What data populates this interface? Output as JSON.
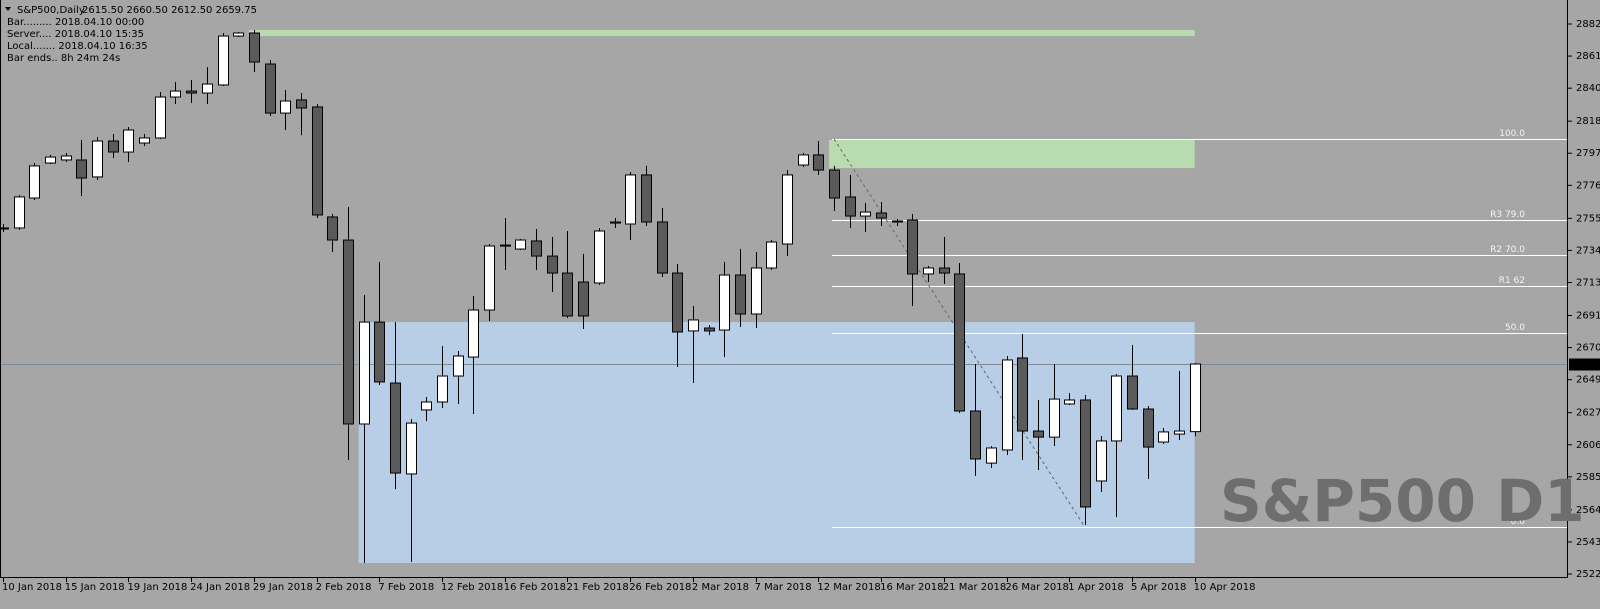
{
  "chart_data": {
    "type": "candlestick",
    "title": "S&P500,Daily",
    "ohlc_text": "2615.50 2660.50 2612.50 2659.75",
    "info": [
      "Bar......... 2018.04.10 00:00",
      "Server.... 2018.04.10 15:35",
      "Local....... 2018.04.10 16:35",
      "Bar ends.. 8h 24m 24s"
    ],
    "watermark": "S&P500 D1",
    "categories": [
      "10 Jan 2018",
      null,
      null,
      null,
      "15 Jan 2018",
      null,
      null,
      null,
      "19 Jan 2018",
      null,
      null,
      null,
      "24 Jan 2018",
      null,
      null,
      null,
      "29 Jan 2018",
      null,
      null,
      null,
      "2 Feb 2018",
      null,
      null,
      null,
      "7 Feb 2018",
      null,
      null,
      null,
      "12 Feb 2018",
      null,
      null,
      null,
      "16 Feb 2018",
      null,
      null,
      null,
      "21 Feb 2018",
      null,
      null,
      null,
      "26 Feb 2018",
      null,
      null,
      null,
      "2 Mar 2018",
      null,
      null,
      null,
      "7 Mar 2018",
      null,
      null,
      null,
      "12 Mar 2018",
      null,
      null,
      null,
      "16 Mar 2018",
      null,
      null,
      null,
      "21 Mar 2018",
      null,
      null,
      null,
      "26 Mar 2018",
      null,
      null,
      null,
      "1 Apr 2018",
      null,
      null,
      null,
      "5 Apr 2018",
      null,
      null,
      null,
      "10 Apr 2018"
    ],
    "open": [
      2748.8,
      2748.8,
      2768.4,
      2791.3,
      2793.3,
      2793.3,
      2782.2,
      2805.7,
      2798.5,
      2804.4,
      2807.7,
      2834.5,
      2838.4,
      2837.1,
      2842.4,
      2874.4,
      2876.4,
      2856.1,
      2824.0,
      2832.6,
      2828.0,
      2756.0,
      2740.9,
      2620.5,
      2687.2,
      2647.3,
      2587.8,
      2629.7,
      2634.9,
      2651.9,
      2664.3,
      2695.1,
      2737.0,
      2735.0,
      2740.3,
      2730.4,
      2719.3,
      2713.4,
      2712.8,
      2752.0,
      2751.4,
      2783.5,
      2752.7,
      2719.3,
      2681.4,
      2683.3,
      2682.0,
      2718.0,
      2692.5,
      2722.6,
      2738.3,
      2790.0,
      2796.6,
      2786.7,
      2769.1,
      2756.6,
      2758.6,
      2753.4,
      2754.0,
      2718.7,
      2722.6,
      2718.7,
      2629.0,
      2594.9,
      2603.5,
      2663.7,
      2615.9,
      2611.9,
      2633.6,
      2636.2,
      2583.2,
      2609.4,
      2651.9,
      2630.3,
      2608.7,
      2613.9,
      2615.5
    ],
    "high": [
      2751.4,
      2770.4,
      2791.3,
      2796.6,
      2797.9,
      2806.4,
      2808.3,
      2810.3,
      2814.9,
      2810.3,
      2837.8,
      2844.3,
      2845.6,
      2854.1,
      2876.4,
      2877.1,
      2878.4,
      2858.7,
      2839.1,
      2837.1,
      2829.9,
      2757.9,
      2762.5,
      2704.9,
      2726.5,
      2687.2,
      2623.8,
      2638.2,
      2671.5,
      2668.3,
      2704.3,
      2738.3,
      2755.3,
      2741.6,
      2748.1,
      2742.9,
      2746.8,
      2731.8,
      2748.8,
      2755.3,
      2785.4,
      2789.4,
      2761.9,
      2725.2,
      2697.7,
      2685.3,
      2726.5,
      2735.0,
      2733.1,
      2740.9,
      2786.7,
      2797.9,
      2805.7,
      2789.4,
      2783.5,
      2765.1,
      2765.8,
      2754.7,
      2757.9,
      2723.9,
      2742.9,
      2725.9,
      2659.8,
      2606.1,
      2665.0,
      2679.4,
      2636.2,
      2659.8,
      2640.8,
      2639.5,
      2612.6,
      2653.2,
      2672.2,
      2632.3,
      2617.9,
      2655.2,
      2660.5
    ],
    "low": [
      2746.2,
      2747.5,
      2767.1,
      2790.7,
      2792.0,
      2769.7,
      2780.2,
      2794.6,
      2792.0,
      2802.4,
      2807.0,
      2829.9,
      2830.6,
      2829.9,
      2841.7,
      2873.8,
      2850.9,
      2822.1,
      2812.9,
      2809.6,
      2755.3,
      2733.1,
      2596.9,
      2529.5,
      2646.0,
      2577.9,
      2530.2,
      2622.4,
      2631.0,
      2633.6,
      2627.0,
      2687.9,
      2721.3,
      2734.4,
      2721.3,
      2706.9,
      2689.9,
      2682.7,
      2711.5,
      2748.8,
      2740.9,
      2750.1,
      2716.7,
      2657.8,
      2647.3,
      2678.7,
      2664.3,
      2684.0,
      2683.3,
      2721.3,
      2730.4,
      2788.7,
      2783.5,
      2759.9,
      2748.8,
      2746.2,
      2750.1,
      2750.1,
      2697.7,
      2713.4,
      2712.1,
      2627.7,
      2586.5,
      2591.7,
      2600.2,
      2596.9,
      2590.4,
      2606.1,
      2632.9,
      2554.4,
      2576.0,
      2559.6,
      2629.7,
      2584.5,
      2607.4,
      2610.0,
      2612.5
    ],
    "close": [
      2748.8,
      2769.1,
      2789.4,
      2795.2,
      2795.9,
      2781.5,
      2805.7,
      2798.5,
      2812.9,
      2807.7,
      2834.5,
      2838.4,
      2837.1,
      2843.0,
      2874.4,
      2876.4,
      2857.4,
      2824.0,
      2831.9,
      2827.3,
      2757.3,
      2740.9,
      2620.5,
      2687.2,
      2648.0,
      2588.4,
      2621.1,
      2634.9,
      2651.9,
      2665.0,
      2695.1,
      2737.0,
      2737.6,
      2740.9,
      2730.4,
      2719.3,
      2691.2,
      2691.2,
      2746.8,
      2752.7,
      2783.5,
      2752.7,
      2719.3,
      2680.7,
      2688.6,
      2681.4,
      2718.0,
      2692.5,
      2722.6,
      2739.6,
      2783.5,
      2796.6,
      2786.7,
      2768.4,
      2756.6,
      2759.2,
      2755.3,
      2752.7,
      2718.7,
      2722.6,
      2719.3,
      2629.0,
      2597.6,
      2604.8,
      2662.4,
      2615.9,
      2611.9,
      2636.8,
      2636.2,
      2566.2,
      2609.4,
      2651.9,
      2630.3,
      2605.4,
      2615.3,
      2615.9,
      2659.75
    ],
    "up_color": "#ffffff",
    "down_color": "#5a5a5a",
    "background": "#a6a6a6",
    "ylim": [
      2519.7,
      2898.0
    ],
    "yticks": [
      {
        "value": 2882.3,
        "label": "2882.30"
      },
      {
        "value": 2861.3,
        "label": "2861.30"
      },
      {
        "value": 2840.3,
        "label": "2840.30"
      },
      {
        "value": 2818.7,
        "label": "2818.70"
      },
      {
        "value": 2797.7,
        "label": "2797.70"
      },
      {
        "value": 2776.7,
        "label": "2776.70"
      },
      {
        "value": 2755.1,
        "label": "2755.10"
      },
      {
        "value": 2734.1,
        "label": "2734.10"
      },
      {
        "value": 2713.1,
        "label": "2713.10"
      },
      {
        "value": 2691.5,
        "label": "2691.50"
      },
      {
        "value": 2670.5,
        "label": "2670.50"
      },
      {
        "value": 2649.5,
        "label": "2649.50"
      },
      {
        "value": 2627.9,
        "label": "2627.90"
      },
      {
        "value": 2606.9,
        "label": "2606.90"
      },
      {
        "value": 2585.9,
        "label": "2585.90"
      },
      {
        "value": 2564.3,
        "label": "2564.30"
      },
      {
        "value": 2543.3,
        "label": "2543.30"
      },
      {
        "value": 2522.3,
        "label": "2522.30"
      }
    ],
    "last_price": {
      "value": 2659.75,
      "label": "2659.75"
    },
    "zones": [
      {
        "color": "#b9dbb0",
        "start": 16,
        "end": 76,
        "top": 2878.4,
        "bottom": 2874.4
      },
      {
        "color": "#b9dbb0",
        "start": 53,
        "end": 76,
        "top": 2806.4,
        "bottom": 2788.0
      },
      {
        "color": "#b8cde6",
        "start": 23,
        "end": 76,
        "top": 2687.2,
        "bottom": 2529.5
      }
    ],
    "fib_start": 53,
    "fib_levels": [
      {
        "label": "100.0",
        "value": 2807.0
      },
      {
        "label": "R3 79.0",
        "value": 2753.7
      },
      {
        "label": "R2 70.0",
        "value": 2730.8
      },
      {
        "label": "R1 62",
        "value": 2710.5
      },
      {
        "label": "50.0",
        "value": 2680.05
      },
      {
        "label": "0.0",
        "value": 2553.1
      }
    ],
    "trend": {
      "from": 53,
      "from_value": 2807.0,
      "to": 69,
      "to_value": 2553.1
    }
  }
}
